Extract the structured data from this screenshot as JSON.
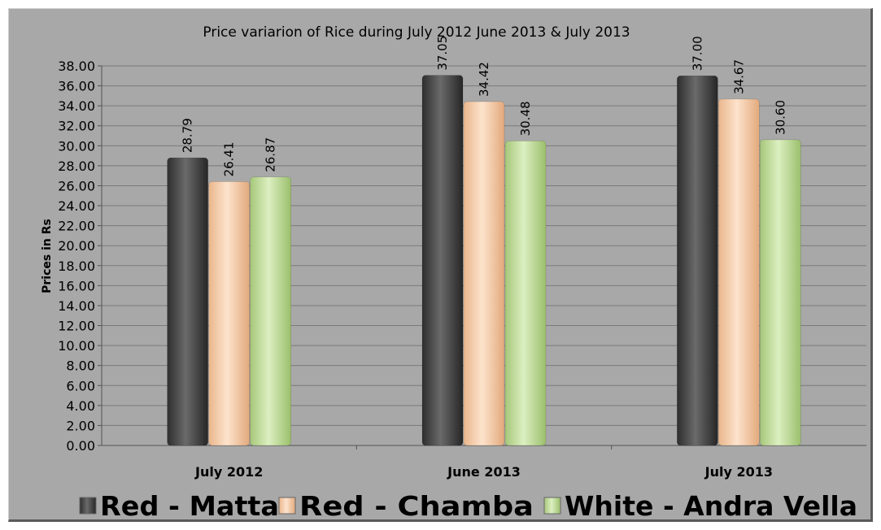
{
  "chart_data": {
    "type": "bar",
    "title": "Price variarion of Rice during July 2012 June 2013 & July 2013",
    "ylabel": "Prices in Rs",
    "xlabel": "",
    "categories": [
      "July 2012",
      "June 2013",
      "July 2013"
    ],
    "series": [
      {
        "name": "Red - Matta",
        "values": [
          28.79,
          37.05,
          37.0
        ],
        "color": "#4a4a4a"
      },
      {
        "name": "Red - Chamba",
        "values": [
          26.41,
          34.42,
          34.67
        ],
        "color": "#f7c9a3"
      },
      {
        "name": "White - Andra Vella",
        "values": [
          26.87,
          30.48,
          30.6
        ],
        "color": "#c3dc9c"
      }
    ],
    "data_labels": [
      [
        "28.79",
        "26.41",
        "26.87"
      ],
      [
        "37.05",
        "34.42",
        "30.48"
      ],
      [
        "37.00",
        "34.67",
        "30.60"
      ]
    ],
    "ylim": [
      0,
      38
    ],
    "ytick_step": 2,
    "ytick_labels": [
      "0.00",
      "2.00",
      "4.00",
      "6.00",
      "8.00",
      "10.00",
      "12.00",
      "14.00",
      "16.00",
      "18.00",
      "20.00",
      "22.00",
      "24.00",
      "26.00",
      "28.00",
      "30.00",
      "32.00",
      "34.00",
      "36.00",
      "38.00"
    ],
    "grid": true,
    "legend_position": "bottom"
  }
}
